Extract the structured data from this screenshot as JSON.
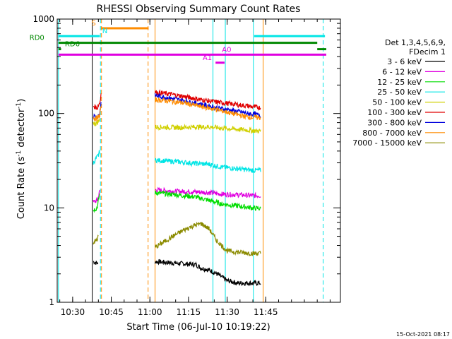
{
  "chart_data": {
    "type": "line",
    "title": "RHESSI Observing Summary Count Rates",
    "xlabel": "Start Time (06-Jul-10 10:19:22)",
    "ylabel_main": "Count Rate (s",
    "ylabel_sup1": "-1",
    "ylabel_mid": " detector",
    "ylabel_sup2": "-1",
    "ylabel_end": ")",
    "y_scale": "log",
    "ylim": [
      1,
      1000
    ],
    "xlim": [
      624,
      734
    ],
    "x_ticks": [
      {
        "v": 630,
        "label": "10:30"
      },
      {
        "v": 645,
        "label": "10:45"
      },
      {
        "v": 660,
        "label": "11:00"
      },
      {
        "v": 675,
        "label": "11:15"
      },
      {
        "v": 690,
        "label": "11:30"
      },
      {
        "v": 705,
        "label": "11:45"
      }
    ],
    "y_ticks": [
      {
        "v": 1,
        "label": "1"
      },
      {
        "v": 10,
        "label": "10"
      },
      {
        "v": 100,
        "label": "100"
      },
      {
        "v": 1000,
        "label": "1000"
      }
    ],
    "legend": {
      "header1": "Det 1,3,4,5,6,9,",
      "header2": "FDecim 1",
      "placement": "right"
    },
    "series": [
      {
        "name": "3 - 6 keV",
        "color": "#000000",
        "segments": [
          {
            "x": [
              638.0,
              639.5,
              639.8
            ],
            "y": [
              2.7,
              2.6,
              2.5
            ]
          },
          {
            "x": [
              662.0,
              670.0,
              678.0,
              680.0,
              683.0,
              686.0,
              690.0,
              694.0,
              700.0,
              703.0
            ],
            "y": [
              2.7,
              2.6,
              2.5,
              2.3,
              2.2,
              2.0,
              1.7,
              1.6,
              1.6,
              1.6
            ]
          }
        ]
      },
      {
        "name": "6 - 12 keV",
        "color": "#e000e0",
        "segments": [
          {
            "x": [
              638.0,
              639.5,
              640.0,
              640.5
            ],
            "y": [
              11.5,
              12.0,
              13.0,
              15.0
            ]
          },
          {
            "x": [
              662.0,
              670.0,
              678.0,
              683.0,
              688.0,
              694.0,
              700.0,
              703.0
            ],
            "y": [
              15.5,
              15.0,
              14.8,
              14.5,
              14.0,
              13.8,
              13.5,
              13.5
            ]
          }
        ]
      },
      {
        "name": "12 - 25 keV",
        "color": "#00dd00",
        "segments": [
          {
            "x": [
              638.0,
              639.5,
              640.0,
              640.5
            ],
            "y": [
              9.5,
              10.0,
              12.0,
              14.0
            ]
          },
          {
            "x": [
              662.0,
              670.0,
              678.0,
              683.0,
              688.0,
              694.0,
              700.0,
              703.0
            ],
            "y": [
              14.5,
              13.8,
              13.0,
              12.0,
              11.0,
              10.5,
              10.0,
              9.8
            ]
          }
        ]
      },
      {
        "name": "25 - 50 keV",
        "color": "#00e5e5",
        "segments": [
          {
            "x": [
              638.0,
              639.0,
              640.0,
              640.5
            ],
            "y": [
              30.0,
              33.0,
              36.0,
              40.0
            ]
          },
          {
            "x": [
              662.0,
              670.0,
              678.0,
              683.0,
              688.0,
              694.0,
              700.0,
              703.0
            ],
            "y": [
              32.0,
              31.0,
              29.5,
              29.0,
              27.0,
              26.0,
              25.0,
              25.0
            ]
          }
        ]
      },
      {
        "name": "50 - 100 keV",
        "color": "#d0d000",
        "segments": [
          {
            "x": [
              638.0,
              639.0,
              640.0,
              640.5
            ],
            "y": [
              80.0,
              78.0,
              82.0,
              90.0
            ]
          },
          {
            "x": [
              662.0,
              670.0,
              678.0,
              683.0,
              688.0,
              694.0,
              700.0,
              703.0
            ],
            "y": [
              72.0,
              71.0,
              72.0,
              72.0,
              70.0,
              68.0,
              66.0,
              65.0
            ]
          }
        ]
      },
      {
        "name": "100 - 300 keV",
        "color": "#e00000",
        "segments": [
          {
            "x": [
              638.0,
              639.5,
              640.5,
              641.0
            ],
            "y": [
              120.0,
              115.0,
              130.0,
              160.0
            ]
          },
          {
            "x": [
              662.0,
              668.0,
              674.0,
              680.0,
              686.0,
              692.0,
              698.0,
              703.0
            ],
            "y": [
              168.0,
              160.0,
              150.0,
              140.0,
              132.0,
              126.0,
              120.0,
              115.0
            ]
          }
        ]
      },
      {
        "name": "300 - 800 keV",
        "color": "#0000dd",
        "segments": [
          {
            "x": [
              638.0,
              639.5,
              640.5,
              641.0
            ],
            "y": [
              95.0,
              92.0,
              100.0,
              130.0
            ]
          },
          {
            "x": [
              662.0,
              668.0,
              674.0,
              680.0,
              686.0,
              692.0,
              698.0,
              703.0
            ],
            "y": [
              155.0,
              145.0,
              135.0,
              125.0,
              115.0,
              108.0,
              100.0,
              96.0
            ]
          }
        ]
      },
      {
        "name": "800 - 7000 keV",
        "color": "#ff8c00",
        "segments": [
          {
            "x": [
              638.0,
              639.5,
              640.5,
              641.0
            ],
            "y": [
              90.0,
              88.0,
              95.0,
              120.0
            ]
          },
          {
            "x": [
              662.0,
              668.0,
              674.0,
              680.0,
              686.0,
              692.0,
              698.0,
              703.0
            ],
            "y": [
              140.0,
              135.0,
              128.0,
              118.0,
              110.0,
              100.0,
              92.0,
              90.0
            ]
          }
        ]
      },
      {
        "name": "7000 - 15000 keV",
        "color": "#8b8b00",
        "segments": [
          {
            "x": [
              638.0,
              639.5,
              640.0
            ],
            "y": [
              4.3,
              4.6,
              5.0
            ]
          },
          {
            "x": [
              662.0,
              665.0,
              669.0,
              673.0,
              677.0,
              680.0,
              683.0,
              686.0,
              690.0,
              694.0,
              700.0,
              703.0
            ],
            "y": [
              3.8,
              4.3,
              5.0,
              5.8,
              6.5,
              6.8,
              6.0,
              4.5,
              3.5,
              3.4,
              3.3,
              3.3
            ]
          }
        ]
      }
    ],
    "vertical_lines": [
      {
        "x": 624.5,
        "color": "#00e5e5",
        "style": "solid"
      },
      {
        "x": 637.6,
        "color": "#000000",
        "style": "solid"
      },
      {
        "x": 640.8,
        "color": "#00e5e5",
        "style": "dashed"
      },
      {
        "x": 641.2,
        "color": "#ff8c00",
        "style": "dashed"
      },
      {
        "x": 659.3,
        "color": "#ff8c00",
        "style": "dashed"
      },
      {
        "x": 662.0,
        "color": "#ff8c00",
        "style": "solid"
      },
      {
        "x": 684.5,
        "color": "#00e5e5",
        "style": "solid"
      },
      {
        "x": 689.3,
        "color": "#00e5e5",
        "style": "solid"
      },
      {
        "x": 700.2,
        "color": "#00e5e5",
        "style": "solid"
      },
      {
        "x": 704.0,
        "color": "#ff8c00",
        "style": "solid"
      },
      {
        "x": 727.3,
        "color": "#00e5e5",
        "style": "dashed"
      }
    ],
    "flag_bars": [
      {
        "label": "S",
        "color": "#ff8c00",
        "x": [
          641.0,
          659.5
        ],
        "y": 800,
        "label_x": 639.0,
        "label_side": "left"
      },
      {
        "label": "N",
        "color": "#00e5e5",
        "x": [
          624.5,
          640.5
        ],
        "y": 660,
        "label_x": 641.5,
        "label_side": "right"
      },
      {
        "label": "",
        "color": "#00e5e5",
        "x": [
          700.5,
          728.0
        ],
        "y": 660,
        "label_x": null,
        "label_side": "none"
      },
      {
        "label": "RD0",
        "color": "#008800",
        "x": [
          624.5,
          725.0
        ],
        "y": 560,
        "label_x": 619.0,
        "label_side": "left"
      },
      {
        "label": "",
        "color": "#008800",
        "x": [
          725.0,
          728.5
        ],
        "y": 480,
        "label_x": null,
        "label_side": "none"
      },
      {
        "label": "RD6",
        "color": "#008800",
        "x": [
          624.5,
          625.5
        ],
        "y": 480,
        "label_x": 627.0,
        "label_side": "right"
      },
      {
        "label": "A0",
        "color": "#e000e0",
        "x": [
          624.5,
          728.5
        ],
        "y": 420,
        "label_x": 688.0,
        "label_side": "right"
      },
      {
        "label": "A1",
        "color": "#e000e0",
        "x": [
          685.5,
          689.0
        ],
        "y": 345,
        "label_x": 680.5,
        "label_side": "right"
      }
    ]
  },
  "footer": {
    "timestamp": "15-Oct-2021 08:17"
  }
}
